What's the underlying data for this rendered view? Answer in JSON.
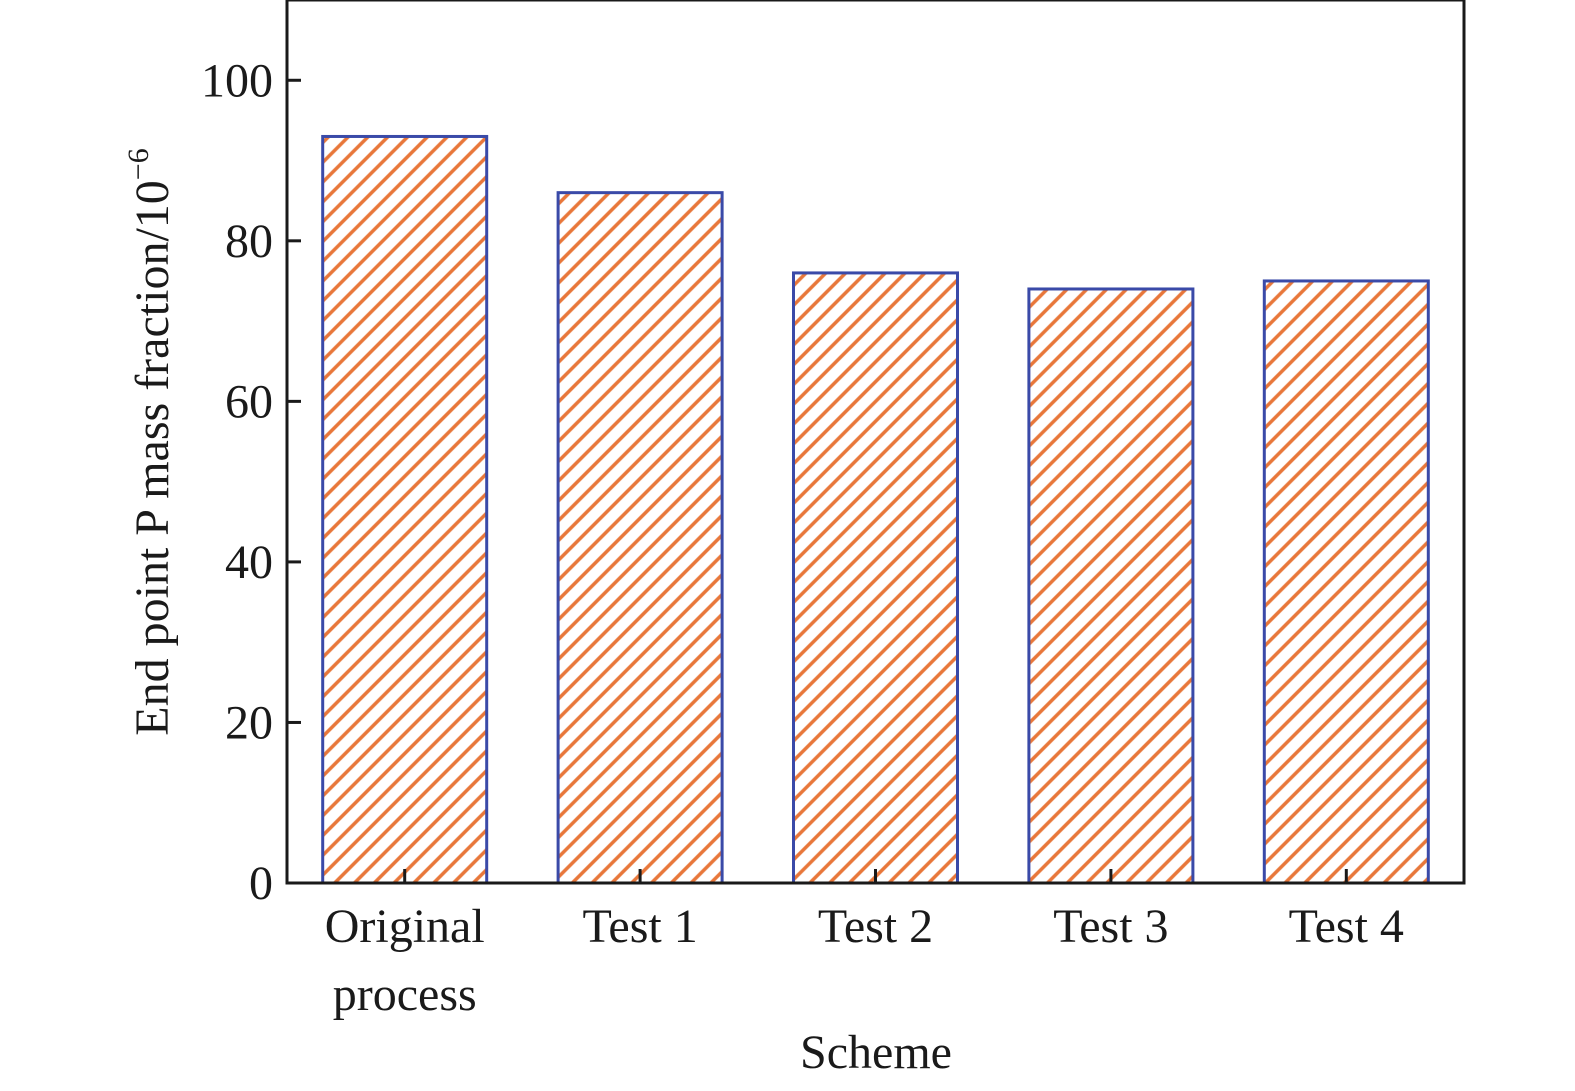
{
  "chart_data": {
    "type": "bar",
    "xlabel": "Scheme",
    "ylabel_base": "End point P mass fraction/10",
    "ylabel_exponent": "−6",
    "categories": [
      [
        "Original",
        "process"
      ],
      [
        "Test 1"
      ],
      [
        "Test 2"
      ],
      [
        "Test 3"
      ],
      [
        "Test 4"
      ]
    ],
    "values": [
      93,
      86,
      76,
      74,
      75
    ],
    "ylim": [
      0,
      110
    ],
    "yticks": [
      0,
      20,
      40,
      60,
      80,
      100
    ],
    "grid": false,
    "legend": "none",
    "bar_fill_pattern": "diagonal-hatch",
    "colors": {
      "hatch": "#e8773a",
      "bar_edge": "#3a4aa8",
      "axis": "#1a1a1a",
      "text": "#1a1a1a"
    }
  }
}
